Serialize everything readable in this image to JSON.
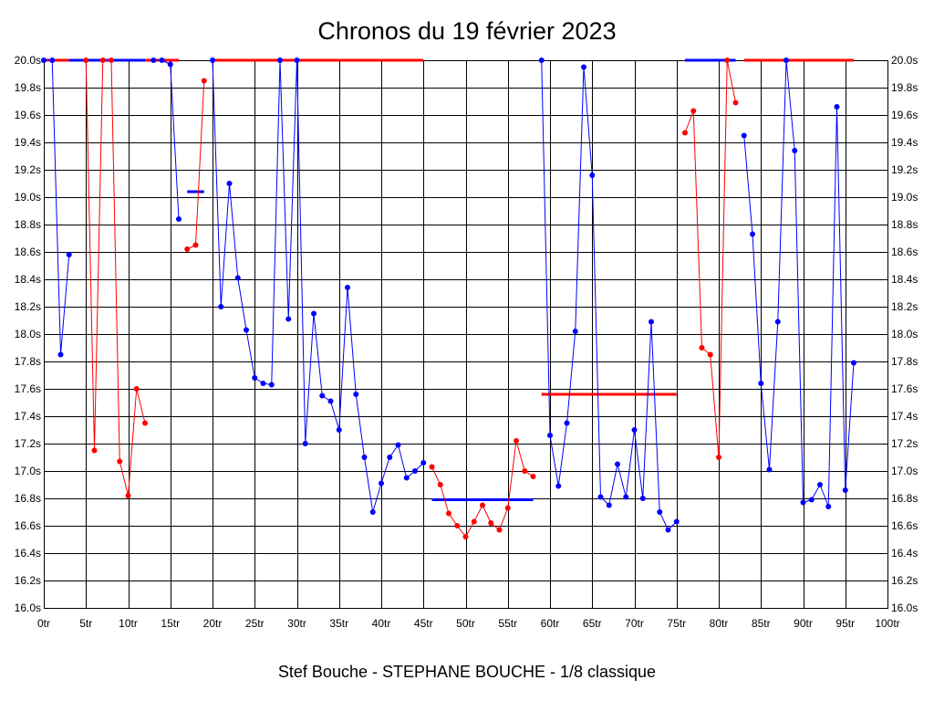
{
  "chart_data": {
    "type": "line",
    "title": "Chronos du 19 février 2023",
    "subtitle": "Stef Bouche - STEPHANE BOUCHE - 1/8 classique",
    "xlabel": "",
    "ylabel": "",
    "xlim": [
      0,
      100
    ],
    "ylim": [
      16.0,
      20.0
    ],
    "grid": true,
    "legend": "none",
    "x_tick_values": [
      0,
      5,
      10,
      15,
      20,
      25,
      30,
      35,
      40,
      45,
      50,
      55,
      60,
      65,
      70,
      75,
      80,
      85,
      90,
      95,
      100
    ],
    "x_tick_labels": [
      "0tr",
      "5tr",
      "10tr",
      "15tr",
      "20tr",
      "25tr",
      "30tr",
      "35tr",
      "40tr",
      "45tr",
      "50tr",
      "55tr",
      "60tr",
      "65tr",
      "70tr",
      "75tr",
      "80tr",
      "85tr",
      "90tr",
      "95tr",
      "100tr"
    ],
    "y_tick_values": [
      16.0,
      16.2,
      16.4,
      16.6,
      16.8,
      17.0,
      17.2,
      17.4,
      17.6,
      17.8,
      18.0,
      18.2,
      18.4,
      18.6,
      18.8,
      19.0,
      19.2,
      19.4,
      19.6,
      19.8,
      20.0
    ],
    "y_tick_labels": [
      "16.0s",
      "16.2s",
      "16.4s",
      "16.6s",
      "16.8s",
      "17.0s",
      "17.2s",
      "17.4s",
      "17.6s",
      "17.8s",
      "18.0s",
      "18.2s",
      "18.4s",
      "18.6s",
      "18.8s",
      "19.0s",
      "19.2s",
      "19.4s",
      "19.6s",
      "19.8s",
      "20.0s"
    ],
    "colors": {
      "blue": "#0000ff",
      "red": "#ff0000"
    },
    "segments": [
      {
        "color": "blue",
        "points": [
          [
            0,
            20.0
          ],
          [
            1,
            20.0
          ],
          [
            2,
            17.85
          ],
          [
            3,
            18.58
          ]
        ]
      },
      {
        "color": "red",
        "points": [
          [
            5,
            20.0
          ],
          [
            6,
            17.15
          ],
          [
            7,
            20.0
          ],
          [
            8,
            20.0
          ],
          [
            9,
            17.07
          ],
          [
            10,
            16.82
          ],
          [
            11,
            17.6
          ],
          [
            12,
            17.35
          ]
        ]
      },
      {
        "color": "blue",
        "points": [
          [
            13,
            20.0
          ],
          [
            14,
            20.0
          ],
          [
            15,
            19.97
          ],
          [
            16,
            18.84
          ]
        ]
      },
      {
        "color": "red",
        "points": [
          [
            17,
            18.62
          ],
          [
            18,
            18.65
          ],
          [
            19,
            19.85
          ]
        ]
      },
      {
        "color": "blue",
        "points": [
          [
            20,
            20.0
          ],
          [
            21,
            18.2
          ],
          [
            22,
            19.1
          ],
          [
            23,
            18.41
          ],
          [
            24,
            18.03
          ],
          [
            25,
            17.68
          ],
          [
            26,
            17.64
          ],
          [
            27,
            17.63
          ],
          [
            28,
            20.0
          ],
          [
            29,
            18.11
          ],
          [
            30,
            20.0
          ],
          [
            31,
            17.2
          ],
          [
            32,
            18.15
          ],
          [
            33,
            17.55
          ],
          [
            34,
            17.51
          ],
          [
            35,
            17.3
          ],
          [
            36,
            18.34
          ],
          [
            37,
            17.56
          ],
          [
            38,
            17.1
          ],
          [
            39,
            16.7
          ],
          [
            40,
            16.91
          ],
          [
            41,
            17.1
          ],
          [
            42,
            17.19
          ],
          [
            43,
            16.95
          ],
          [
            44,
            17.0
          ],
          [
            45,
            17.06
          ]
        ]
      },
      {
        "color": "red",
        "points": [
          [
            46,
            17.03
          ],
          [
            47,
            16.9
          ],
          [
            48,
            16.69
          ],
          [
            49,
            16.6
          ],
          [
            50,
            16.52
          ],
          [
            51,
            16.63
          ],
          [
            52,
            16.75
          ],
          [
            53,
            16.62
          ],
          [
            54,
            16.57
          ],
          [
            55,
            16.73
          ],
          [
            56,
            17.22
          ],
          [
            57,
            17.0
          ],
          [
            58,
            16.96
          ]
        ]
      },
      {
        "color": "blue",
        "points": [
          [
            59,
            20.0
          ],
          [
            60,
            17.26
          ],
          [
            61,
            16.89
          ],
          [
            62,
            17.35
          ],
          [
            63,
            18.02
          ],
          [
            64,
            19.95
          ],
          [
            65,
            19.16
          ],
          [
            66,
            16.81
          ],
          [
            67,
            16.75
          ],
          [
            68,
            17.05
          ],
          [
            69,
            16.81
          ],
          [
            70,
            17.3
          ],
          [
            71,
            16.8
          ],
          [
            72,
            18.09
          ],
          [
            73,
            16.7
          ],
          [
            74,
            16.57
          ],
          [
            75,
            16.63
          ]
        ]
      },
      {
        "color": "red",
        "points": [
          [
            76,
            19.47
          ],
          [
            77,
            19.63
          ],
          [
            78,
            17.9
          ],
          [
            79,
            17.85
          ],
          [
            80,
            17.1
          ],
          [
            81,
            20.0
          ],
          [
            82,
            19.69
          ]
        ]
      },
      {
        "color": "blue",
        "points": [
          [
            83,
            19.45
          ],
          [
            84,
            18.73
          ],
          [
            85,
            17.64
          ],
          [
            86,
            17.01
          ],
          [
            87,
            18.09
          ],
          [
            88,
            20.0
          ],
          [
            89,
            19.34
          ],
          [
            90,
            16.77
          ],
          [
            91,
            16.79
          ],
          [
            92,
            16.9
          ],
          [
            93,
            16.74
          ],
          [
            94,
            19.66
          ],
          [
            95,
            16.86
          ],
          [
            96,
            17.79
          ]
        ]
      }
    ],
    "average_lines": [
      {
        "color": "red",
        "x": [
          0,
          3
        ],
        "y": 20.0
      },
      {
        "color": "blue",
        "x": [
          3,
          12
        ],
        "y": 20.0
      },
      {
        "color": "red",
        "x": [
          12,
          16
        ],
        "y": 20.0
      },
      {
        "color": "blue",
        "x": [
          17,
          19
        ],
        "y": 19.04
      },
      {
        "color": "red",
        "x": [
          20,
          45
        ],
        "y": 20.0
      },
      {
        "color": "blue",
        "x": [
          46,
          58
        ],
        "y": 16.79
      },
      {
        "color": "red",
        "x": [
          59,
          75
        ],
        "y": 17.56
      },
      {
        "color": "blue",
        "x": [
          76,
          82
        ],
        "y": 20.0
      },
      {
        "color": "red",
        "x": [
          83,
          96
        ],
        "y": 20.0
      }
    ]
  }
}
